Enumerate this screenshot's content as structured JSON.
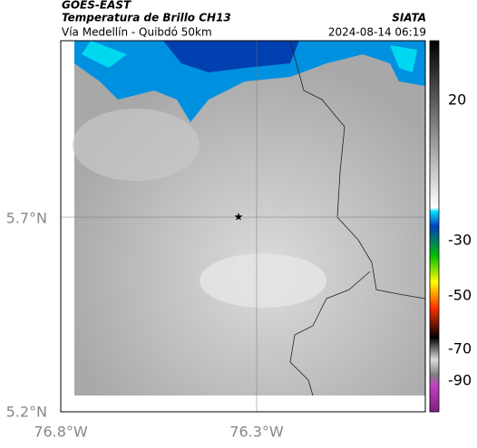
{
  "header": {
    "satellite": "GOES-EAST",
    "title": "Temperatura de Brillo CH13",
    "source": "SIATA",
    "subtitle": "Vía Medellín - Quibdó 50km",
    "datetime": "2024-08-14 06:19"
  },
  "map": {
    "lat_labels": [
      "5.7°N",
      "5.2°N"
    ],
    "lon_labels": [
      "76.8°W",
      "76.3°W"
    ]
  },
  "colorbar": {
    "ticks": [
      "20",
      "-30",
      "-50",
      "-70",
      "-90"
    ]
  }
}
